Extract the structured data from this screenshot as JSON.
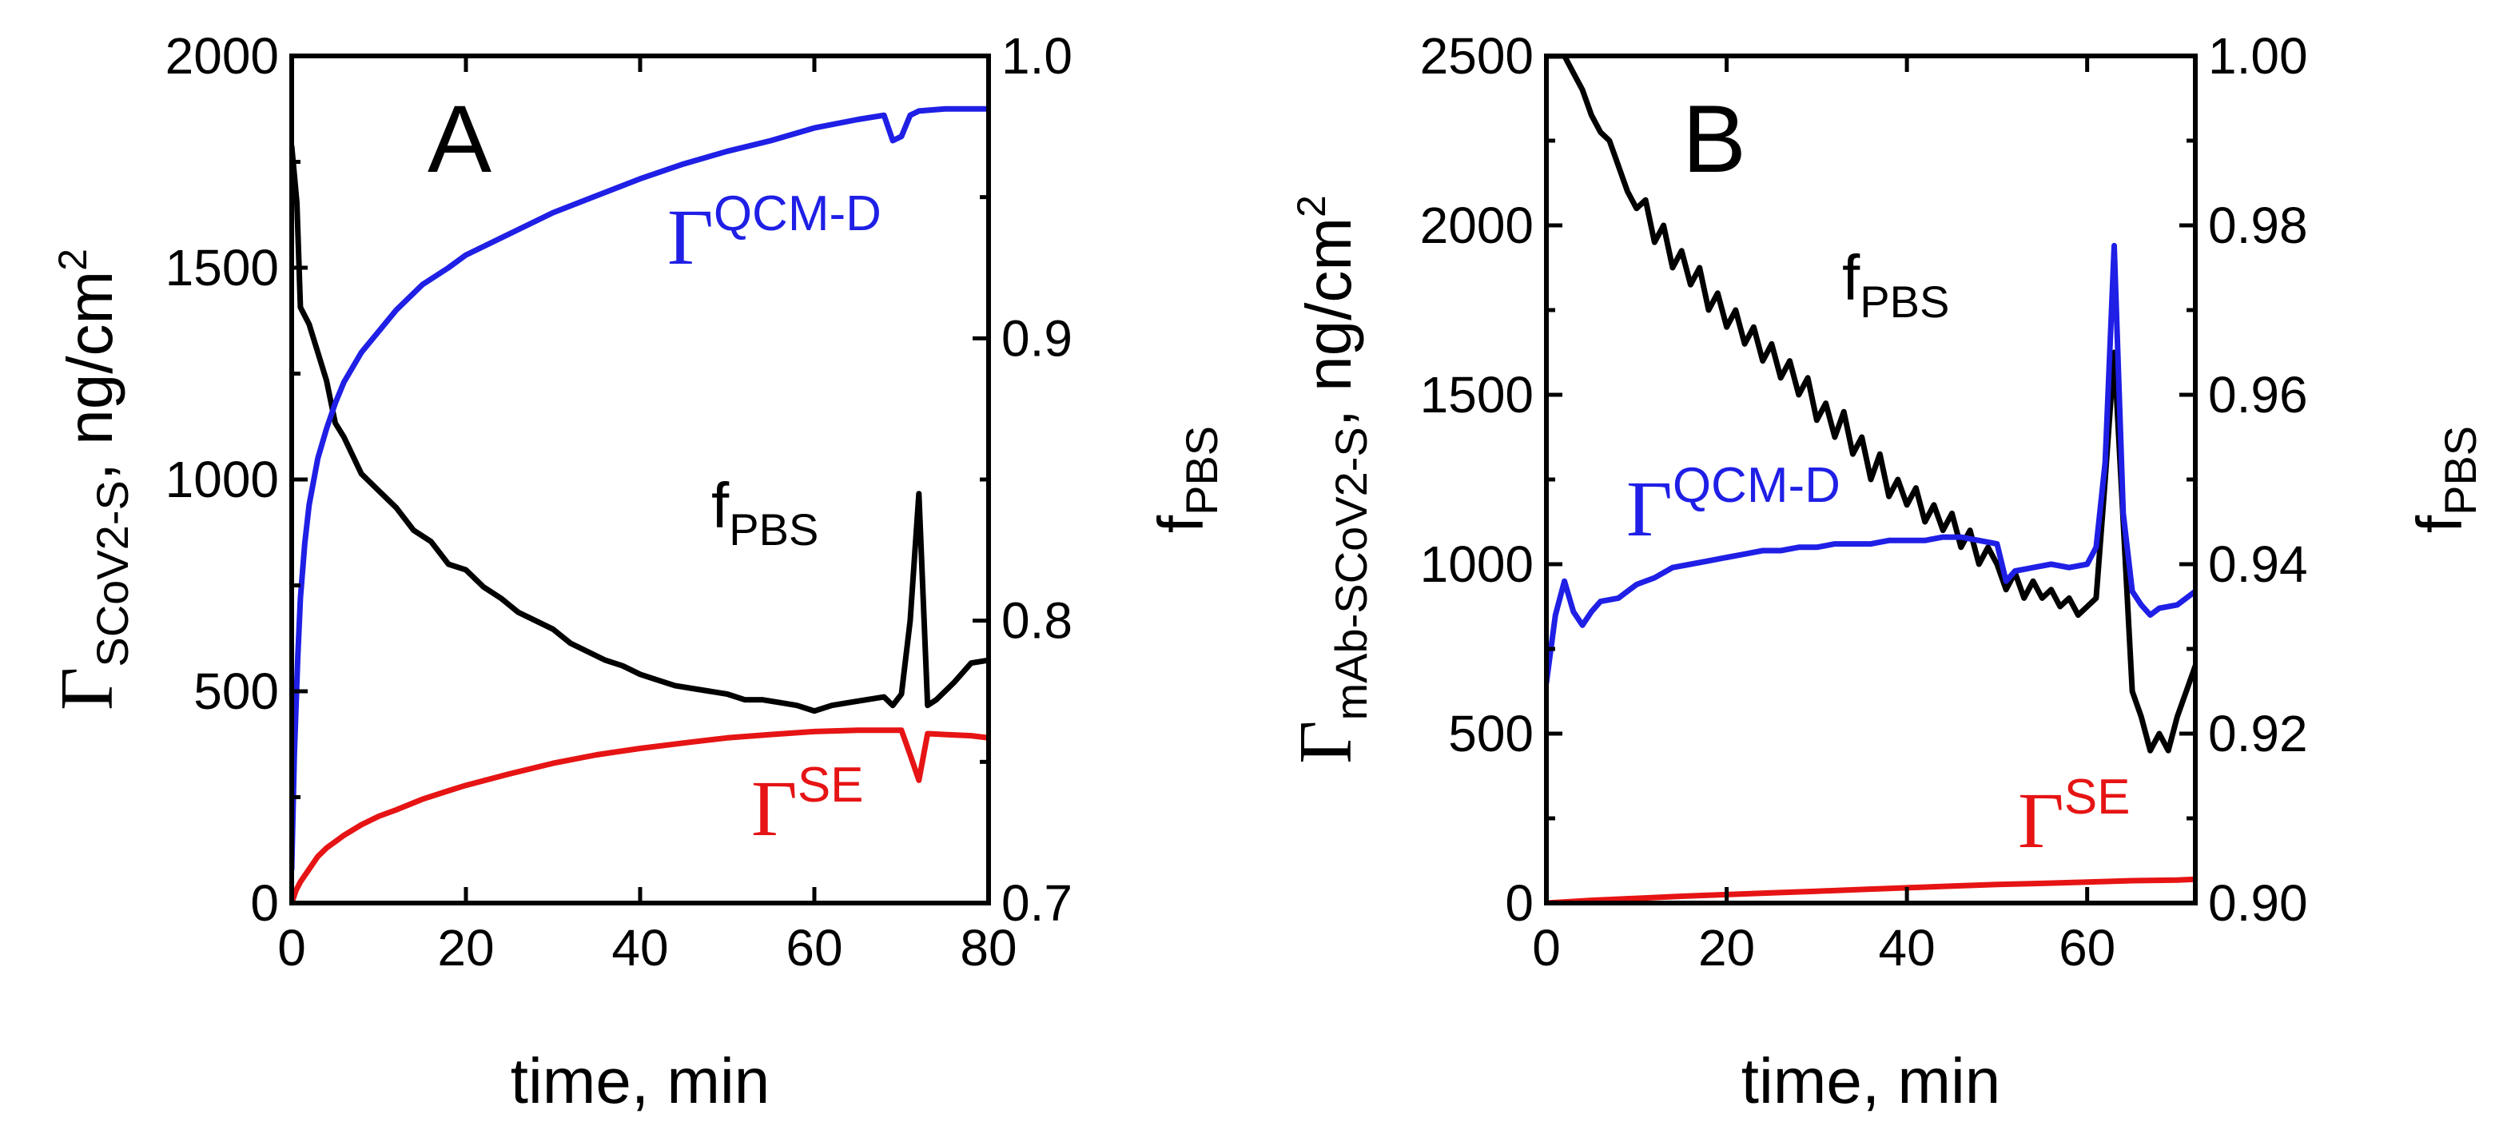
{
  "chart_data": [
    {
      "type": "line",
      "panel_label": "A",
      "xlabel": "time, min",
      "xlim": [
        0,
        80
      ],
      "x_ticks": [
        0,
        20,
        40,
        60,
        80
      ],
      "y_left": {
        "label_symbol": "Γ",
        "label_subscript": "SCoV2-S",
        "label_unit": ", ng/cm",
        "label_unit_sup": "2",
        "lim": [
          0,
          2000
        ],
        "ticks": [
          0,
          500,
          1000,
          1500,
          2000
        ]
      },
      "y_right": {
        "label_main": "f",
        "label_subscript": "PBS",
        "lim": [
          0.7,
          1.0
        ],
        "ticks": [
          "0.7",
          "0.8",
          "0.9",
          "1.0"
        ]
      },
      "series": [
        {
          "name": "QCM-D",
          "label_symbol": "Γ",
          "label_sup": "QCM-D",
          "axis": "left",
          "color": "#1f1fe6",
          "x": [
            0,
            0.3,
            0.7,
            1,
            1.5,
            2,
            3,
            4,
            5,
            6,
            8,
            10,
            12,
            15,
            18,
            20,
            25,
            30,
            35,
            40,
            45,
            50,
            55,
            60,
            65,
            68,
            69,
            70,
            71,
            72,
            75,
            80
          ],
          "y": [
            80,
            350,
            580,
            720,
            850,
            940,
            1050,
            1120,
            1180,
            1230,
            1300,
            1350,
            1400,
            1460,
            1500,
            1530,
            1580,
            1630,
            1670,
            1710,
            1745,
            1775,
            1800,
            1830,
            1850,
            1860,
            1800,
            1810,
            1860,
            1870,
            1875,
            1875
          ]
        },
        {
          "name": "SE",
          "label_symbol": "Γ",
          "label_sup": "SE",
          "axis": "left",
          "color": "#e61414",
          "x": [
            0,
            0.5,
            1,
            2,
            3,
            4,
            5,
            6,
            8,
            10,
            12,
            15,
            18,
            20,
            25,
            30,
            35,
            40,
            45,
            50,
            55,
            60,
            65,
            70,
            71,
            72,
            73,
            75,
            78,
            80
          ],
          "y": [
            0,
            30,
            50,
            80,
            110,
            130,
            145,
            160,
            185,
            205,
            220,
            245,
            265,
            278,
            305,
            330,
            350,
            365,
            378,
            390,
            398,
            405,
            408,
            408,
            350,
            290,
            400,
            398,
            395,
            390
          ]
        },
        {
          "name": "fPBS",
          "label_main": "f",
          "label_sub": "PBS",
          "axis": "right",
          "color": "#000000",
          "x": [
            0,
            0.3,
            0.6,
            1,
            2,
            3,
            4,
            5,
            6,
            8,
            10,
            12,
            14,
            16,
            18,
            20,
            22,
            24,
            26,
            28,
            30,
            32,
            34,
            36,
            38,
            40,
            42,
            44,
            46,
            48,
            50,
            52,
            54,
            56,
            58,
            60,
            62,
            64,
            66,
            68,
            69,
            70,
            71,
            72,
            73,
            74,
            76,
            78,
            80
          ],
          "y": [
            0.968,
            0.958,
            0.948,
            0.911,
            0.905,
            0.895,
            0.885,
            0.87,
            0.865,
            0.852,
            0.846,
            0.84,
            0.832,
            0.828,
            0.82,
            0.818,
            0.812,
            0.808,
            0.803,
            0.8,
            0.797,
            0.792,
            0.789,
            0.786,
            0.784,
            0.781,
            0.779,
            0.777,
            0.776,
            0.775,
            0.774,
            0.772,
            0.772,
            0.771,
            0.77,
            0.768,
            0.77,
            0.771,
            0.772,
            0.773,
            0.77,
            0.774,
            0.8,
            0.845,
            0.77,
            0.772,
            0.778,
            0.785,
            0.786
          ]
        }
      ]
    },
    {
      "type": "line",
      "panel_label": "B",
      "xlabel": "time, min",
      "xlim": [
        0,
        72
      ],
      "x_ticks": [
        0,
        20,
        40,
        60
      ],
      "y_left": {
        "label_symbol": "Γ",
        "label_subscript": "mAb-SCoV2-S",
        "label_unit": ", ng/cm",
        "label_unit_sup": "2",
        "lim": [
          0,
          2500
        ],
        "ticks": [
          0,
          500,
          1000,
          1500,
          2000,
          2500
        ]
      },
      "y_right": {
        "label_main": "f",
        "label_subscript": "PBS",
        "lim": [
          0.9,
          1.0
        ],
        "ticks": [
          "0.90",
          "0.92",
          "0.94",
          "0.96",
          "0.98",
          "1.00"
        ]
      },
      "series": [
        {
          "name": "QCM-D",
          "label_symbol": "Γ",
          "label_sup": "QCM-D",
          "axis": "left",
          "color": "#1f1fe6",
          "x": [
            0,
            1,
            2,
            3,
            4,
            5,
            6,
            8,
            10,
            12,
            14,
            16,
            18,
            20,
            22,
            24,
            26,
            28,
            30,
            32,
            34,
            36,
            38,
            40,
            42,
            44,
            46,
            48,
            50,
            51,
            52,
            54,
            56,
            58,
            60,
            61,
            62,
            63,
            64,
            65,
            66,
            67,
            68,
            70,
            72
          ],
          "y": [
            650,
            850,
            950,
            860,
            820,
            860,
            890,
            900,
            940,
            960,
            990,
            1000,
            1010,
            1020,
            1030,
            1040,
            1040,
            1050,
            1050,
            1060,
            1060,
            1060,
            1070,
            1070,
            1070,
            1080,
            1080,
            1070,
            1060,
            950,
            980,
            990,
            1000,
            990,
            1000,
            1050,
            1300,
            1940,
            1150,
            920,
            880,
            850,
            870,
            880,
            920
          ]
        },
        {
          "name": "SE",
          "label_symbol": "Γ",
          "label_sup": "SE",
          "axis": "left",
          "color": "#e61414",
          "x": [
            0,
            5,
            10,
            15,
            20,
            25,
            30,
            35,
            40,
            45,
            50,
            55,
            60,
            65,
            70,
            72
          ],
          "y": [
            0,
            8,
            14,
            20,
            25,
            30,
            35,
            40,
            45,
            50,
            55,
            58,
            62,
            66,
            68,
            70
          ]
        },
        {
          "name": "fPBS",
          "label_main": "f",
          "label_sub": "PBS",
          "axis": "right",
          "color": "#000000",
          "x": [
            0,
            1,
            2,
            3,
            4,
            5,
            6,
            7,
            8,
            9,
            10,
            11,
            12,
            13,
            14,
            15,
            16,
            17,
            18,
            19,
            20,
            21,
            22,
            23,
            24,
            25,
            26,
            27,
            28,
            29,
            30,
            31,
            32,
            33,
            34,
            35,
            36,
            37,
            38,
            39,
            40,
            41,
            42,
            43,
            44,
            45,
            46,
            47,
            48,
            49,
            50,
            51,
            52,
            53,
            54,
            55,
            56,
            57,
            58,
            59,
            60,
            61,
            62,
            63,
            64,
            65,
            66,
            67,
            68,
            69,
            70,
            71,
            72
          ],
          "y": [
            1.0,
            1.0,
            1.0,
            0.998,
            0.996,
            0.993,
            0.991,
            0.99,
            0.987,
            0.984,
            0.982,
            0.983,
            0.978,
            0.98,
            0.975,
            0.977,
            0.973,
            0.975,
            0.97,
            0.972,
            0.968,
            0.97,
            0.966,
            0.968,
            0.964,
            0.966,
            0.962,
            0.964,
            0.96,
            0.962,
            0.957,
            0.959,
            0.955,
            0.958,
            0.953,
            0.955,
            0.95,
            0.953,
            0.948,
            0.95,
            0.947,
            0.949,
            0.945,
            0.947,
            0.944,
            0.946,
            0.942,
            0.944,
            0.94,
            0.942,
            0.94,
            0.937,
            0.939,
            0.936,
            0.938,
            0.936,
            0.937,
            0.935,
            0.936,
            0.934,
            0.935,
            0.936,
            0.95,
            0.965,
            0.945,
            0.925,
            0.922,
            0.918,
            0.92,
            0.918,
            0.922,
            0.925,
            0.928
          ]
        }
      ]
    }
  ]
}
